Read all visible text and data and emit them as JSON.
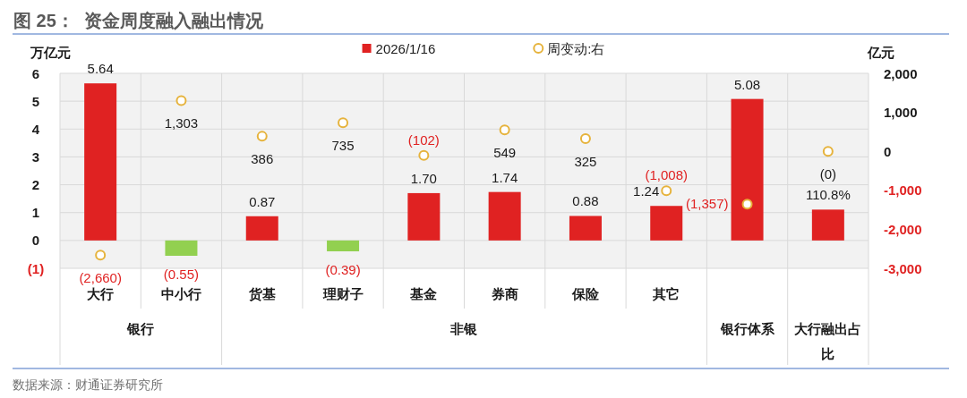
{
  "chart_data": {
    "type": "bar",
    "title": "图 25：  资金周度融入融出情况",
    "ylabel": "万亿元",
    "y2label": "亿元",
    "categories": [
      "大行",
      "中小行",
      "货基",
      "理财子",
      "基金",
      "券商",
      "保险",
      "其它",
      null,
      null
    ],
    "series": [
      {
        "name": "2026/1/16",
        "type": "bar",
        "color": "#e02222",
        "colors": [
          "#e02222",
          "#92d050",
          "#e02222",
          "#92d050",
          "#e02222",
          "#e02222",
          "#e02222",
          "#e02222",
          "#e02222",
          "#e02222"
        ],
        "values": [
          5.64,
          -0.55,
          0.87,
          -0.39,
          1.7,
          1.74,
          0.88,
          1.24,
          5.08,
          1.108
        ],
        "value_labels": [
          "5.64",
          "(0.55)",
          "0.87",
          "(0.39)",
          "1.70",
          "1.74",
          "0.88",
          "1.24",
          "5.08",
          "110.8%"
        ]
      },
      {
        "name": "周变动:右",
        "type": "scatter",
        "axis": "y2",
        "color": "#e6b33c",
        "values": [
          -2660,
          1303,
          386,
          735,
          -102,
          549,
          325,
          -1008,
          -1357,
          0
        ],
        "value_labels": [
          "(2,660)",
          "1,303",
          "386",
          "735",
          "(102)",
          "549",
          "325",
          "(1,008)",
          "(1,357)",
          "(0)"
        ]
      }
    ],
    "ylim": [
      -1,
      6
    ],
    "yticks": [
      {
        "value": -1,
        "label": "(1)"
      },
      0,
      1,
      2,
      3,
      4,
      5,
      6
    ],
    "y2lim": [
      -3000,
      2000
    ],
    "y2ticks": [
      {
        "value": -3000,
        "label": "-3,000"
      },
      {
        "value": -2000,
        "label": "-2,000"
      },
      {
        "value": -1000,
        "label": "-1,000"
      },
      0,
      {
        "value": 1000,
        "label": "1,000"
      },
      {
        "value": 2000,
        "label": "2,000"
      }
    ],
    "grid": true,
    "legend": "top",
    "marker": "circle",
    "annotations": [
      "银行",
      "非银",
      "银行体系",
      "大行融出占比",
      "数据来源：财通证券研究所"
    ]
  }
}
